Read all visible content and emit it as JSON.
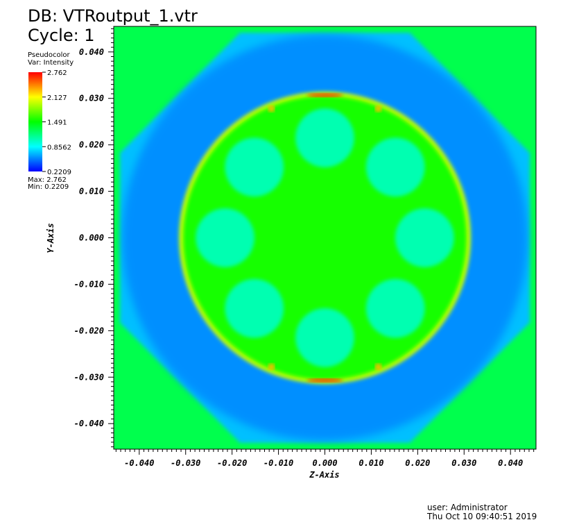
{
  "header": {
    "db_label": "DB: VTRoutput_1.vtr",
    "cycle_label": "Cycle: 1"
  },
  "legend": {
    "plot_type": "Pseudocolor",
    "var_label": "Var: Intensity",
    "max_label": "Max:  2.762",
    "min_label": "Min:  0.2209",
    "ticks": [
      "2.762",
      "2.127",
      "1.491",
      "0.8562",
      "0.2209"
    ],
    "colormap": [
      "#ff0000",
      "#ffff00",
      "#00ff00",
      "#00ffff",
      "#0000ff"
    ]
  },
  "footer": {
    "user": "user: Administrator",
    "timestamp": "Thu Oct 10 09:40:51 2019"
  },
  "chart_data": {
    "type": "heatmap",
    "title": "",
    "xlabel": "Z-Axis",
    "ylabel": "Y-Axis",
    "xlim": [
      -0.0455,
      0.0455
    ],
    "ylim": [
      -0.0455,
      0.0455
    ],
    "x_ticks": [
      "-0.040",
      "-0.030",
      "-0.020",
      "-0.010",
      "0.000",
      "0.010",
      "0.020",
      "0.030",
      "0.040"
    ],
    "y_ticks": [
      "0.040",
      "0.030",
      "0.020",
      "0.010",
      "0.000",
      "-0.010",
      "-0.020",
      "-0.030",
      "-0.040"
    ],
    "x_tick_values": [
      -0.04,
      -0.03,
      -0.02,
      -0.01,
      0.0,
      0.01,
      0.02,
      0.03,
      0.04
    ],
    "y_tick_values": [
      0.04,
      0.03,
      0.02,
      0.01,
      0.0,
      -0.01,
      -0.02,
      -0.03,
      -0.04
    ],
    "variable": "Intensity",
    "value_range": [
      0.2209,
      2.762
    ],
    "background_value": 1.3,
    "outer_ring": {
      "inner_radius": 0.031,
      "outer_radius": 0.0455,
      "value": 0.7
    },
    "inner_disk": {
      "radius": 0.031,
      "value": 1.55
    },
    "rim_peaks_value": 2.6,
    "holes": {
      "count": 8,
      "center_radius": 0.0215,
      "radius": 0.0055,
      "value": 1.05
    }
  }
}
